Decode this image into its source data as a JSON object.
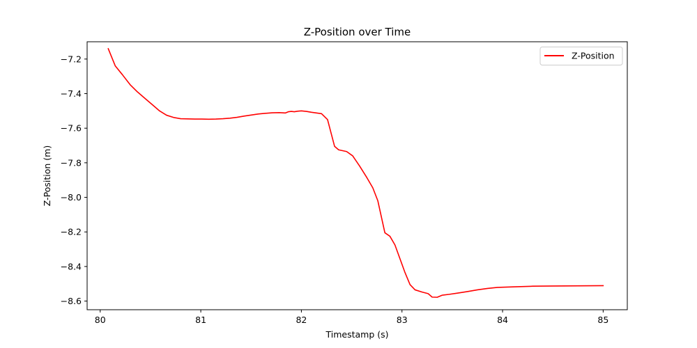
{
  "chart_data": {
    "type": "line",
    "title": "Z-Position over Time",
    "xlabel": "Timestamp (s)",
    "ylabel": "Z-Position (m)",
    "xlim": [
      79.87,
      85.24
    ],
    "ylim": [
      -8.65,
      -7.1
    ],
    "xticks": [
      80,
      81,
      82,
      83,
      84,
      85
    ],
    "xtick_labels": [
      "80",
      "81",
      "82",
      "83",
      "84",
      "85"
    ],
    "yticks": [
      -7.2,
      -7.4,
      -7.6,
      -7.8,
      -8.0,
      -8.2,
      -8.4,
      -8.6
    ],
    "ytick_labels": [
      "−7.2",
      "−7.4",
      "−7.6",
      "−7.8",
      "−8.0",
      "−8.2",
      "−8.4",
      "−8.6"
    ],
    "grid": false,
    "legend_position": "top-right",
    "series": [
      {
        "name": "Z-Position",
        "color": "#ff0000",
        "x": [
          80.08,
          80.15,
          80.22,
          80.3,
          80.37,
          80.45,
          80.52,
          80.59,
          80.66,
          80.73,
          80.8,
          80.87,
          80.94,
          81.01,
          81.08,
          81.15,
          81.22,
          81.29,
          81.36,
          81.43,
          81.5,
          81.57,
          81.64,
          81.71,
          81.78,
          81.84,
          81.87,
          81.9,
          81.93,
          81.96,
          82.0,
          82.05,
          82.1,
          82.15,
          82.2,
          82.26,
          82.33,
          82.37,
          82.45,
          82.51,
          82.58,
          82.65,
          82.71,
          82.76,
          82.83,
          82.88,
          82.93,
          82.98,
          83.03,
          83.08,
          83.13,
          83.2,
          83.26,
          83.3,
          83.35,
          83.4,
          83.47,
          83.55,
          83.65,
          83.75,
          83.85,
          83.95,
          84.1,
          84.3,
          84.5,
          84.75,
          85.0
        ],
        "y": [
          -7.14,
          -7.24,
          -7.29,
          -7.35,
          -7.39,
          -7.43,
          -7.465,
          -7.5,
          -7.525,
          -7.538,
          -7.545,
          -7.546,
          -7.547,
          -7.547,
          -7.548,
          -7.547,
          -7.545,
          -7.542,
          -7.537,
          -7.53,
          -7.524,
          -7.518,
          -7.514,
          -7.511,
          -7.51,
          -7.512,
          -7.505,
          -7.503,
          -7.505,
          -7.502,
          -7.5,
          -7.503,
          -7.508,
          -7.512,
          -7.516,
          -7.55,
          -7.705,
          -7.725,
          -7.735,
          -7.76,
          -7.82,
          -7.885,
          -7.945,
          -8.02,
          -8.205,
          -8.225,
          -8.275,
          -8.355,
          -8.435,
          -8.505,
          -8.535,
          -8.548,
          -8.557,
          -8.577,
          -8.578,
          -8.566,
          -8.561,
          -8.554,
          -8.545,
          -8.535,
          -8.527,
          -8.521,
          -8.518,
          -8.514,
          -8.513,
          -8.512,
          -8.511
        ]
      }
    ]
  }
}
